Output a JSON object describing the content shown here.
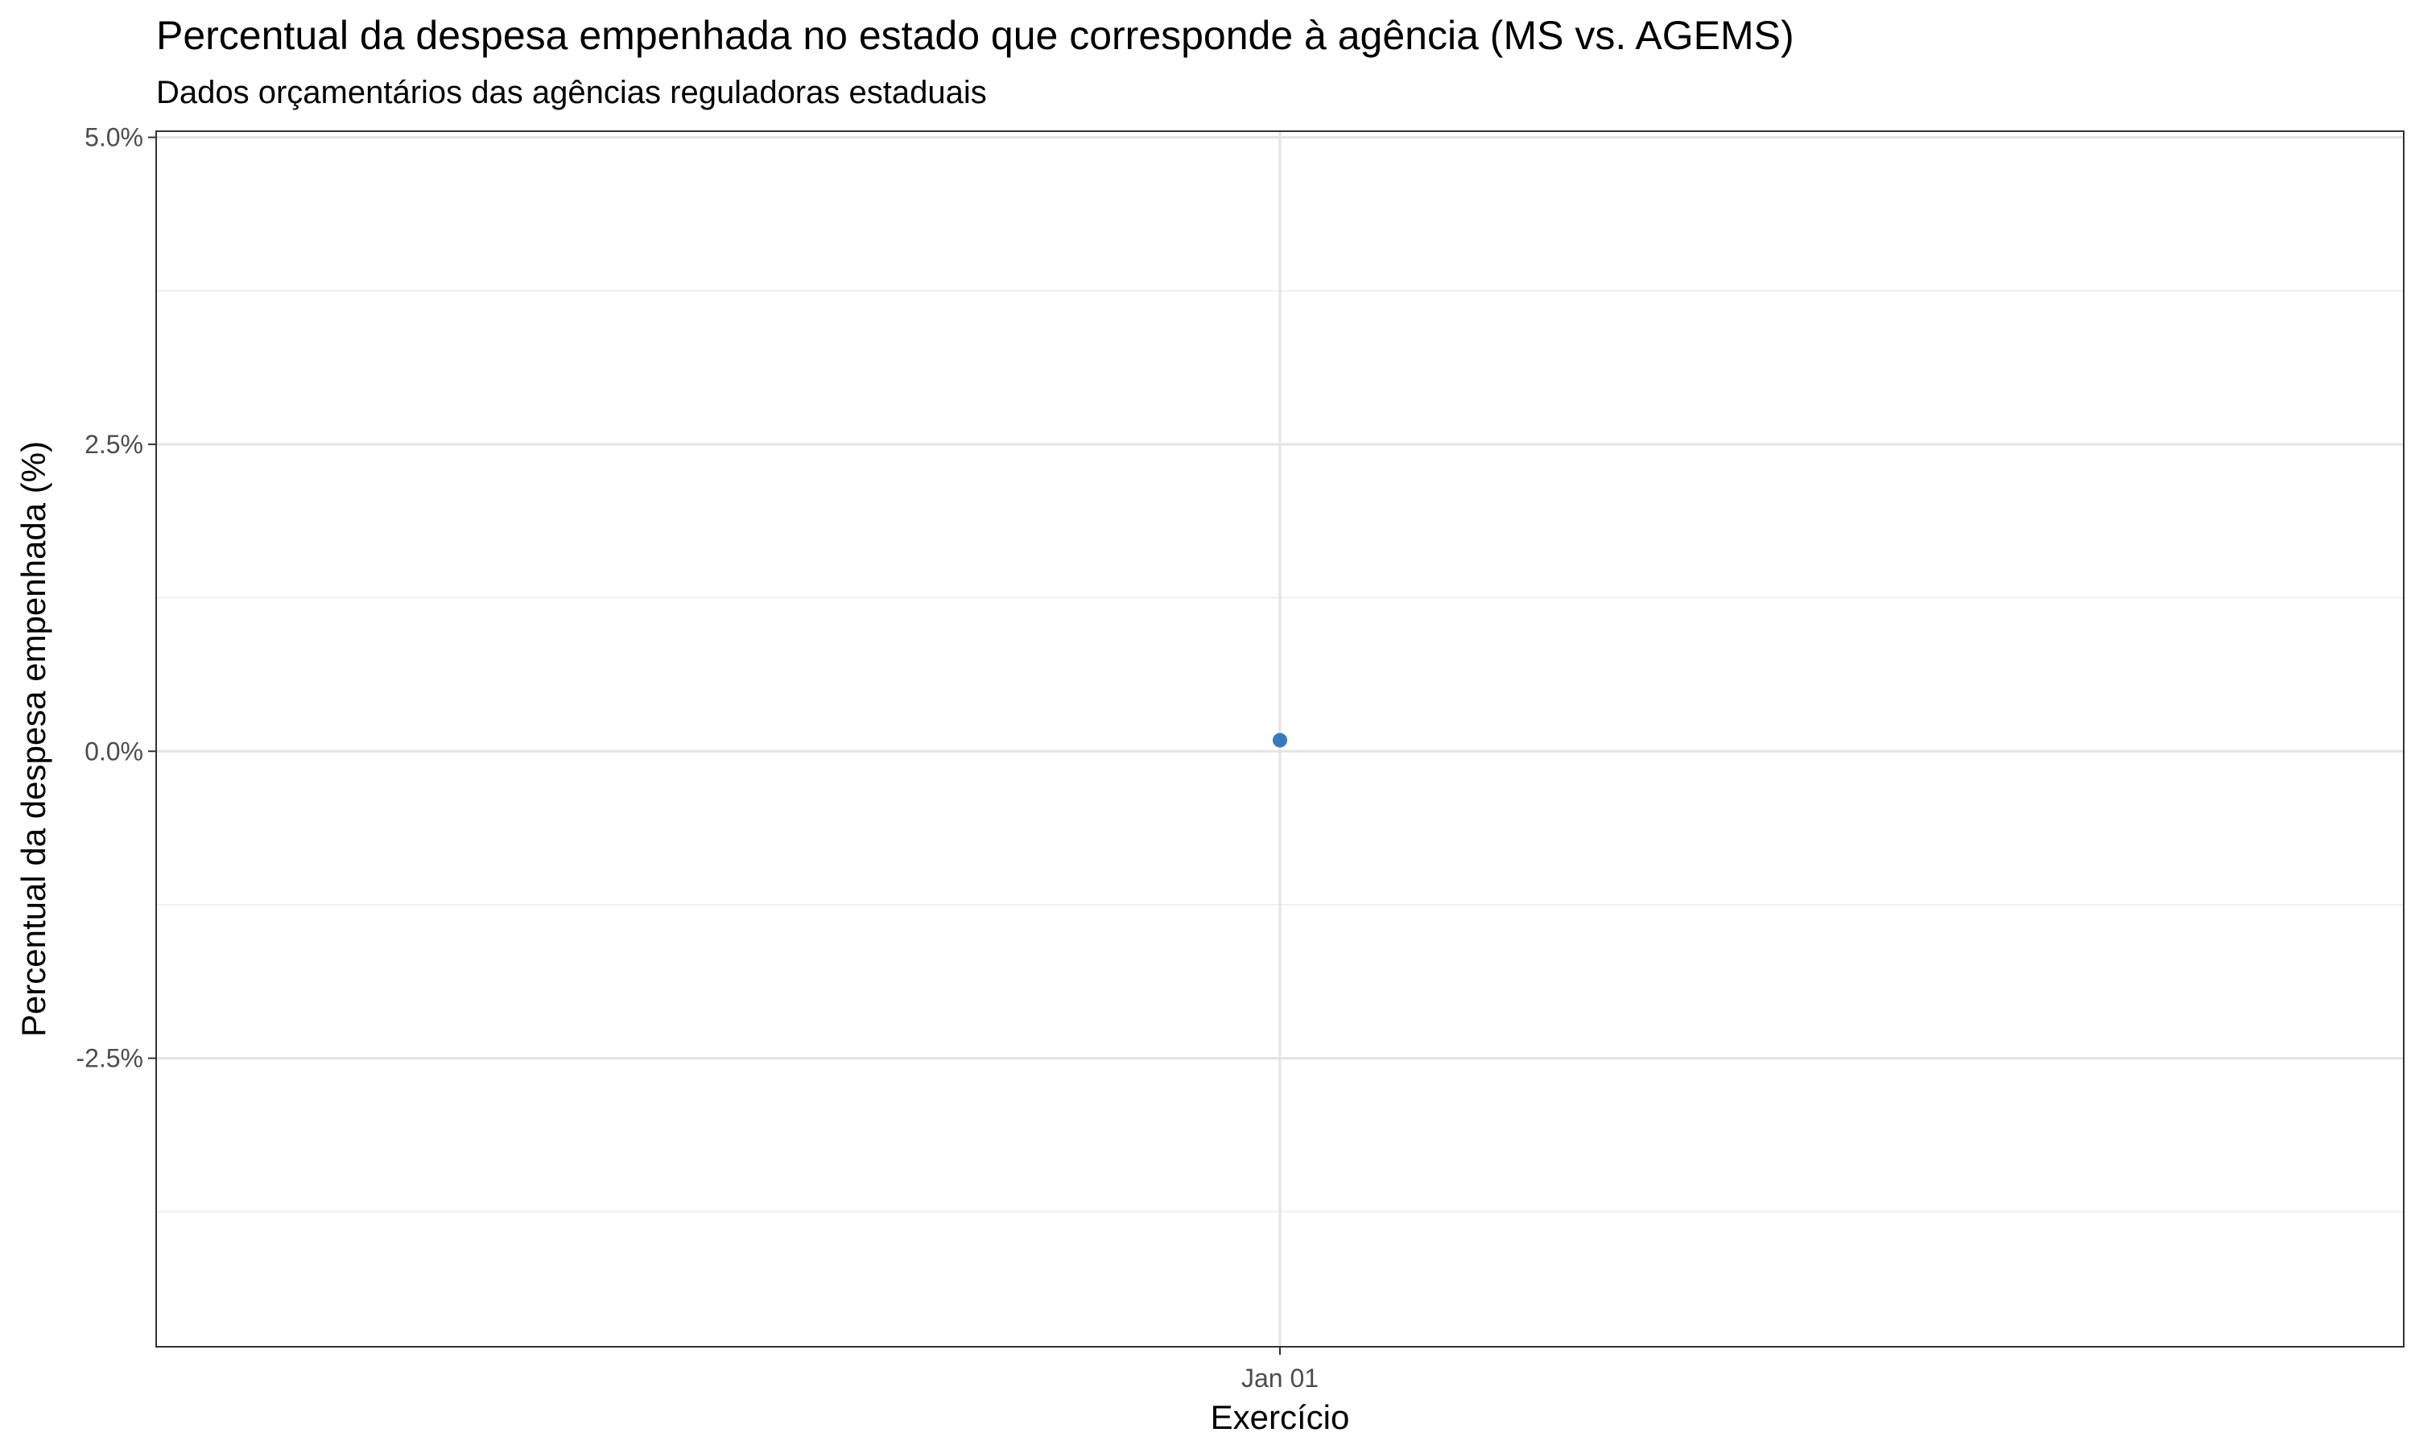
{
  "chart_data": {
    "type": "scatter",
    "title": "Percentual da despesa empenhada no estado que corresponde à agência (MS vs. AGEMS)",
    "subtitle": "Dados orçamentários das agências reguladoras estaduais",
    "xlabel": "Exercício",
    "ylabel": "Percentual da despesa empenhada (%)",
    "x_ticks": [
      "Jan 01"
    ],
    "y_ticks": [
      {
        "value": 5.0,
        "label": "5.0%"
      },
      {
        "value": 2.5,
        "label": "2.5%"
      },
      {
        "value": 0.0,
        "label": "0.0%"
      },
      {
        "value": -2.5,
        "label": "-2.5%"
      }
    ],
    "ylim": [
      -4.85,
      5.05
    ],
    "grid": true,
    "series": [
      {
        "color": "#3a78bf",
        "points": [
          {
            "x": "Jan 01",
            "y": 0.09
          }
        ]
      }
    ]
  }
}
